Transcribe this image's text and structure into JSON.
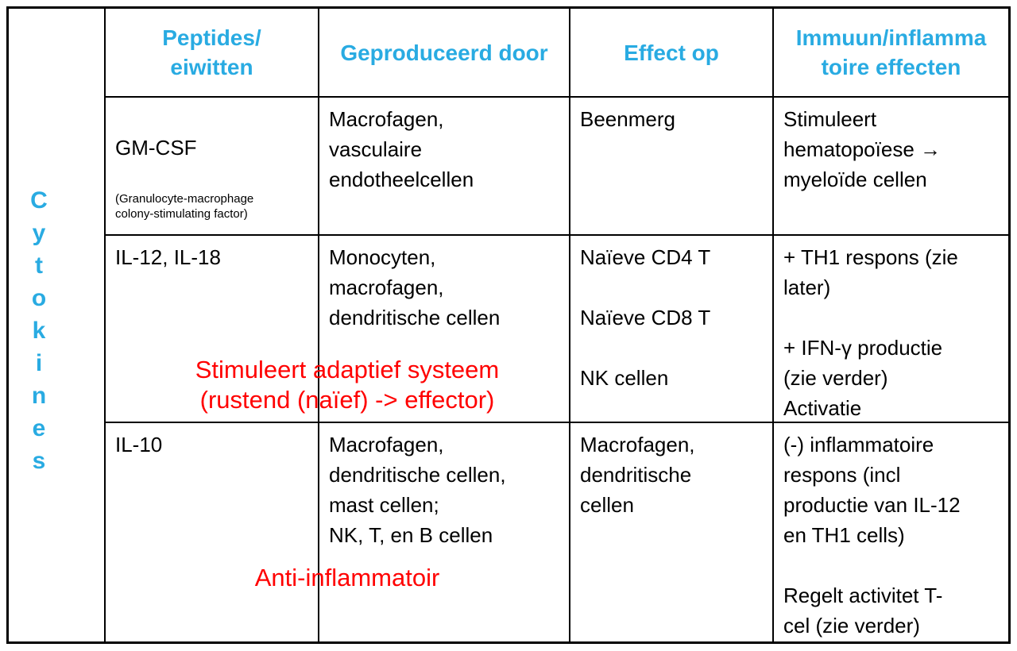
{
  "colors": {
    "header_blue": "#29ABE2",
    "annotation_red": "#FF0000",
    "text_black": "#000000",
    "border_black": "#000000",
    "background": "#FFFFFF"
  },
  "side_label": {
    "word": "Cytokines",
    "stacked": "C\ny\nt\no\nk\ni\nn\ne\ns"
  },
  "headers": {
    "peptides": "Peptides/\neiwitten",
    "produced_by": "Geproduceerd door",
    "effect_on": "Effect op",
    "immune_effects": "Immuun/inflamma\ntoire effecten"
  },
  "rows": [
    {
      "peptide": "GM-CSF",
      "peptide_note": "(Granulocyte-macrophage\ncolony-stimulating factor)",
      "produced_by": "Macrofagen,\nvasculaire\nendotheelcellen",
      "effect_on": "Beenmerg",
      "immune_effects": "Stimuleert\nhematopoïese →\nmyeloïde cellen"
    },
    {
      "peptide": "IL-12, IL-18",
      "produced_by": "Monocyten,\nmacrofagen,\ndendritische cellen",
      "effect_on": "Naïeve CD4 T\n\nNaïeve CD8 T\n\nNK cellen",
      "immune_effects": "+ TH1 respons (zie\nlater)\n\n+ IFN-γ productie\n(zie verder)\nActivatie",
      "annotation": "Stimuleert adaptief systeem\n(rustend (naïef) -> effector)"
    },
    {
      "peptide": "IL-10",
      "produced_by": "Macrofagen,\ndendritische cellen,\nmast cellen;\nNK, T, en B cellen",
      "effect_on": "Macrofagen,\ndendritische\ncellen",
      "immune_effects": "(-) inflammatoire\nrespons (incl\nproductie van IL-12\nen TH1 cells)\n\nRegelt activitet T-\ncel (zie verder)",
      "annotation": "Anti-inflammatoir"
    }
  ]
}
